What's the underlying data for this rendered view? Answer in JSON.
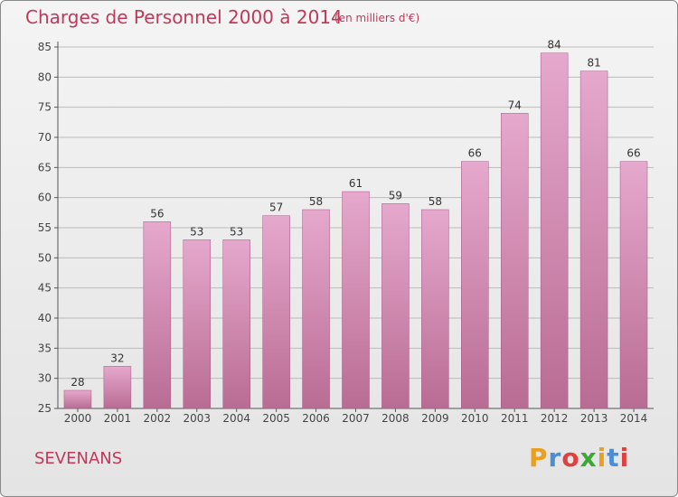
{
  "header": {
    "title": "Charges de Personnel 2000 à 2014",
    "subtitle": "(en milliers d'€)"
  },
  "footer": {
    "commune": "SEVENANS",
    "logo_text": "Proxiti"
  },
  "colors": {
    "accent": "#c0395a",
    "bar_top": "#e6a8cd",
    "bar_bottom": "#b96c93",
    "grid": "#bbbbbb",
    "background": "#ececec",
    "logo_letters": [
      "#e8a020",
      "#4a8fd4",
      "#e04040",
      "#3aaa35",
      "#e8a020",
      "#4a8fd4",
      "#e04040"
    ]
  },
  "chart_data": {
    "type": "bar",
    "title": "Charges de Personnel 2000 à 2014",
    "subtitle": "(en milliers d'€)",
    "xlabel": "",
    "ylabel": "",
    "categories": [
      "2000",
      "2001",
      "2002",
      "2003",
      "2004",
      "2005",
      "2006",
      "2007",
      "2008",
      "2009",
      "2010",
      "2011",
      "2012",
      "2013",
      "2014"
    ],
    "values": [
      28,
      32,
      56,
      53,
      53,
      57,
      58,
      61,
      59,
      58,
      66,
      74,
      84,
      81,
      66
    ],
    "ylim": [
      25,
      85
    ],
    "yticks": [
      25,
      30,
      35,
      40,
      45,
      50,
      55,
      60,
      65,
      70,
      75,
      80,
      85
    ],
    "grid": true,
    "data_labels": true
  }
}
